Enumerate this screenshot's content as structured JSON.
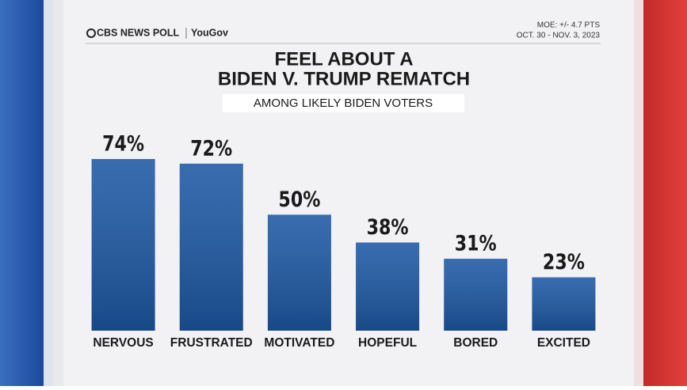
{
  "chart_data": {
    "type": "bar",
    "brand": "CBS NEWS POLL",
    "partner": "YouGov",
    "moe": "MOE: +/- 4.7 PTS",
    "dates": "OCT. 30 - NOV. 3, 2023",
    "title": [
      "FEEL ABOUT A",
      "BIDEN V. TRUMP REMATCH"
    ],
    "subtitle": "AMONG LIKELY BIDEN VOTERS",
    "categories": [
      "NERVOUS",
      "FRUSTRATED",
      "MOTIVATED",
      "HOPEFUL",
      "BORED",
      "EXCITED"
    ],
    "values": [
      74,
      72,
      50,
      38,
      31,
      23
    ],
    "value_labels": [
      "74%",
      "72%",
      "50%",
      "38%",
      "31%",
      "23%"
    ],
    "color": "#1d58a4"
  }
}
